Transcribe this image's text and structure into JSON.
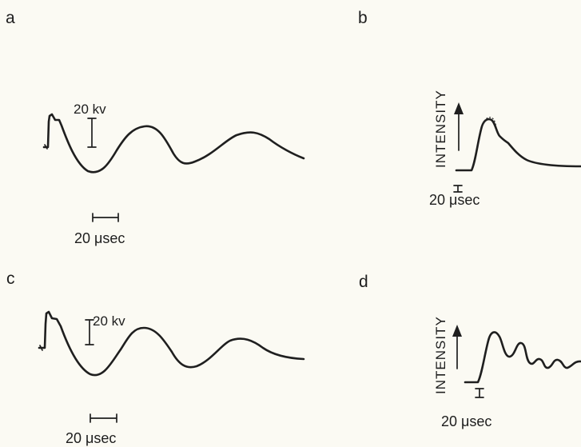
{
  "panels": {
    "a": {
      "label": "a",
      "voltage_scale": "20 kv",
      "time_scale": "20 μsec"
    },
    "b": {
      "label": "b",
      "axis_label": "INTENSITY",
      "time_scale": "20 μsec"
    },
    "c": {
      "label": "c",
      "voltage_scale": "20 kv",
      "time_scale": "20 μsec"
    },
    "d": {
      "label": "d",
      "axis_label": "INTENSITY",
      "time_scale": "20 μsec"
    }
  },
  "colors": {
    "paper": "#fbfaf3",
    "ink": "#1f1f1f"
  }
}
